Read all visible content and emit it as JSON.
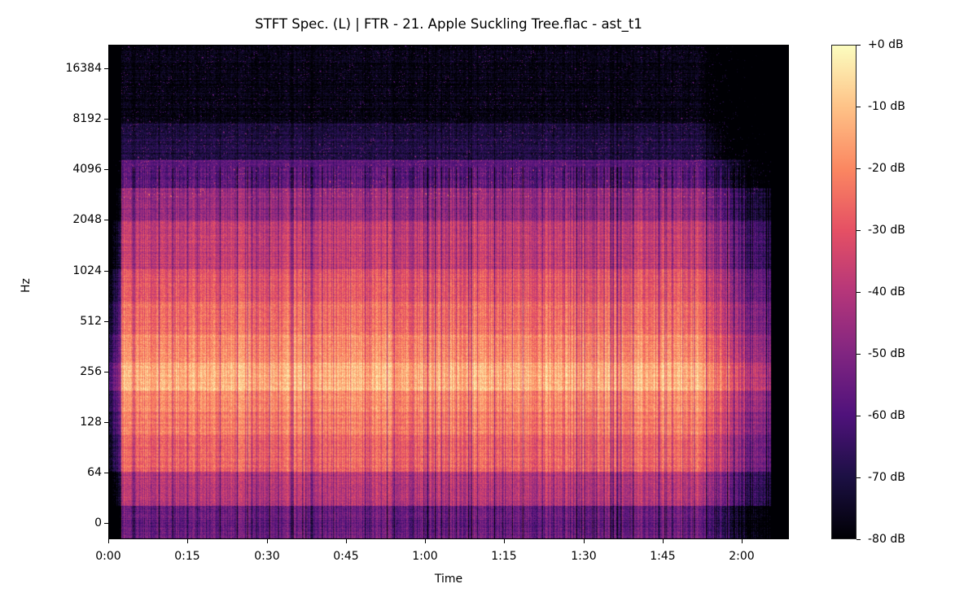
{
  "chart_data": {
    "type": "heatmap",
    "subtype": "spectrogram",
    "title": "STFT Spec. (L) | FTR - 21. Apple Suckling Tree.flac - ast_t1",
    "xlabel": "Time",
    "ylabel": "Hz",
    "x_ticks": [
      {
        "label": "0:00",
        "seconds": 0
      },
      {
        "label": "0:15",
        "seconds": 15
      },
      {
        "label": "0:30",
        "seconds": 30
      },
      {
        "label": "0:45",
        "seconds": 45
      },
      {
        "label": "1:00",
        "seconds": 60
      },
      {
        "label": "1:15",
        "seconds": 75
      },
      {
        "label": "1:30",
        "seconds": 90
      },
      {
        "label": "1:45",
        "seconds": 105
      },
      {
        "label": "2:00",
        "seconds": 120
      }
    ],
    "x_range_seconds": [
      0,
      129
    ],
    "audio_content_range_seconds": [
      2.3,
      125.5
    ],
    "y_scale": "log (symlog)",
    "y_ticks": [
      "16384",
      "8192",
      "4096",
      "2048",
      "1024",
      "512",
      "256",
      "128",
      "64",
      "0"
    ],
    "y_range_hz": [
      0,
      22050
    ],
    "colormap": "magma",
    "colorbar": {
      "ticks": [
        "+0 dB",
        "-10 dB",
        "-20 dB",
        "-30 dB",
        "-40 dB",
        "-50 dB",
        "-60 dB",
        "-70 dB",
        "-80 dB"
      ],
      "range_db": [
        -80,
        0
      ]
    },
    "observations": {
      "energy_ceiling_hz": "~4000-5000 Hz (above is mostly near -80 dB)",
      "brightest_band_hz": "~180-300 Hz (around -10 to -5 dB)",
      "strong_band_hz": "~60-1000 Hz (-15 to -30 dB)",
      "lowest_band_hz": "0-30 Hz, dark purple (~-55 dB)",
      "fade_out_seconds": "~115-125 s",
      "legend_position": "right colorbar",
      "grid": false
    }
  },
  "colors": {
    "background": "#ffffff",
    "plot_empty": "#000004",
    "magma_stops": [
      "#000004",
      "#1c1044",
      "#4f127b",
      "#812581",
      "#b5367a",
      "#e55064",
      "#fb8761",
      "#fec287",
      "#fcfdbf"
    ]
  }
}
